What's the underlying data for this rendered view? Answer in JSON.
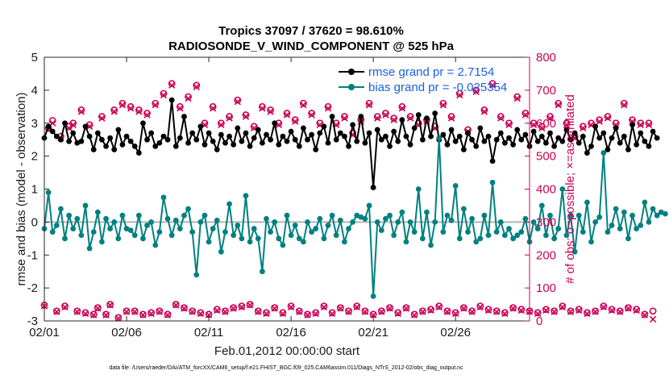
{
  "chart_data": {
    "type": "line",
    "title": "Tropics 37097 / 37620 = 98.610%",
    "subtitle": "RADIOSONDE_V_WIND_COMPONENT @ 525 hPa",
    "xlabel": "Feb.01,2012 00:00:00 start",
    "ylabel_left": "rmse and bias (model - observation)",
    "ylabel_right": "# of obs: o=possible; ×=assimilated",
    "xlim": [
      0,
      29.5
    ],
    "ylim_left": [
      -3,
      5
    ],
    "ylim_right": [
      0,
      800
    ],
    "x_ticks": [
      {
        "value": 0,
        "label": "02/01"
      },
      {
        "value": 5,
        "label": "02/06"
      },
      {
        "value": 10,
        "label": "02/11"
      },
      {
        "value": 15,
        "label": "02/16"
      },
      {
        "value": 20,
        "label": "02/21"
      },
      {
        "value": 25,
        "label": "02/26"
      }
    ],
    "y_ticks_left": [
      "-3",
      "-2",
      "-1",
      "0",
      "1",
      "2",
      "3",
      "4",
      "5"
    ],
    "y_ticks_right": [
      "0",
      "100",
      "200",
      "300",
      "400",
      "500",
      "600",
      "700",
      "800"
    ],
    "zero_line": 0,
    "step": 0.25,
    "series": [
      {
        "name": "rmse",
        "legend": "rmse grand pr = 2.7154",
        "axis": "left",
        "color": "#000000",
        "values": [
          2.55,
          2.9,
          2.75,
          2.6,
          2.5,
          3.0,
          2.45,
          2.7,
          2.4,
          2.45,
          2.9,
          2.6,
          2.2,
          2.7,
          2.5,
          2.3,
          2.55,
          2.2,
          2.8,
          2.35,
          2.6,
          2.45,
          2.3,
          2.1,
          3.0,
          2.5,
          2.7,
          2.3,
          2.4,
          2.6,
          2.5,
          3.7,
          2.3,
          2.55,
          3.2,
          2.4,
          2.7,
          2.5,
          2.9,
          2.35,
          2.7,
          2.45,
          2.2,
          2.65,
          2.4,
          2.6,
          2.35,
          2.85,
          2.45,
          2.7,
          2.3,
          2.55,
          2.8,
          2.4,
          2.65,
          2.5,
          3.0,
          2.35,
          2.6,
          2.45,
          2.75,
          2.5,
          2.3,
          2.85,
          2.5,
          2.65,
          2.2,
          2.7,
          2.9,
          2.4,
          3.2,
          2.5,
          2.7,
          2.6,
          2.3,
          2.95,
          2.45,
          3.2,
          2.4,
          2.7,
          1.05,
          2.8,
          2.5,
          2.6,
          2.3,
          2.75,
          2.45,
          3.1,
          2.6,
          2.35,
          2.85,
          3.25,
          2.5,
          3.15,
          2.6,
          3.3,
          2.5,
          2.65,
          2.35,
          2.8,
          2.45,
          2.6,
          2.2,
          2.7,
          2.5,
          2.3,
          2.85,
          2.45,
          2.6,
          1.85,
          2.5,
          2.7,
          2.4,
          2.55,
          2.35,
          2.8,
          2.5,
          2.65,
          2.3,
          2.75,
          2.45,
          2.6,
          2.4,
          2.7,
          2.3,
          2.55,
          2.45,
          2.8,
          2.5,
          2.7,
          2.4,
          2.6,
          2.1,
          2.3,
          2.9,
          2.55,
          2.7,
          2.2,
          2.55,
          2.85,
          2.4,
          2.6,
          2.2,
          2.95,
          2.35,
          2.7,
          2.45,
          2.3,
          2.75,
          2.55
        ]
      },
      {
        "name": "bias",
        "legend": "bias grand pr = -0.025354",
        "axis": "left",
        "color": "#008080",
        "values": [
          -0.2,
          0.9,
          -0.3,
          -0.1,
          0.4,
          -0.5,
          0.2,
          -0.2,
          0.1,
          -0.4,
          0.5,
          -0.8,
          -0.3,
          0.3,
          -0.6,
          0.1,
          -0.2,
          0.0,
          -0.5,
          0.2,
          -0.2,
          -0.25,
          -0.4,
          0.2,
          -0.5,
          -0.1,
          0.0,
          -0.7,
          -0.3,
          0.75,
          0.1,
          -0.4,
          0.05,
          -0.2,
          0.2,
          0.4,
          -0.3,
          -1.6,
          0.0,
          0.2,
          -0.6,
          -0.2,
          0.05,
          -0.9,
          -0.3,
          0.55,
          -0.4,
          -0.1,
          -0.5,
          0.8,
          -0.6,
          -0.2,
          -0.5,
          -1.5,
          0.1,
          -0.3,
          0.0,
          -0.5,
          -0.7,
          0.2,
          -0.4,
          -0.1,
          -0.5,
          -0.6,
          0.0,
          -0.3,
          -0.2,
          0.1,
          -0.5,
          -0.1,
          0.2,
          -0.4,
          0.05,
          -0.6,
          -0.2,
          0.0,
          0.2,
          0.15,
          0.1,
          0.5,
          -2.25,
          0.0,
          -0.25,
          0.1,
          0.2,
          -0.4,
          0.0,
          0.3,
          -0.6,
          0.0,
          -0.3,
          1.0,
          -0.5,
          0.3,
          -0.7,
          0.0,
          2.55,
          -0.3,
          0.2,
          0.05,
          1.1,
          -0.5,
          0.4,
          -0.3,
          0.1,
          -0.6,
          -0.5,
          0.2,
          -0.4,
          1.2,
          -0.3,
          0.0,
          -0.4,
          -0.2,
          -0.5,
          -0.4,
          -0.3,
          0.1,
          -0.6,
          0.0,
          -0.2,
          0.5,
          -0.4,
          0.2,
          -0.5,
          -0.2,
          1.0,
          -0.4,
          0.2,
          -0.9,
          0.2,
          -0.3,
          0.6,
          -0.6,
          0.0,
          0.15,
          2.1,
          -0.3,
          -0.1,
          0.4,
          -0.2,
          0.3,
          -0.5,
          0.2,
          -0.2,
          -0.1,
          0.6,
          0.0,
          0.4,
          0.2,
          0.3,
          0.25
        ]
      },
      {
        "name": "obs_possible",
        "axis": "right",
        "marker": "o",
        "color": "#cc0055",
        "values": [
          48,
          585,
          608,
          30,
          560,
          45,
          590,
          600,
          30,
          640,
          25,
          595,
          20,
          40,
          620,
          20,
          50,
          640,
          10,
          660,
          30,
          650,
          30,
          640,
          20,
          630,
          25,
          660,
          30,
          690,
          20,
          720,
          50,
          650,
          40,
          680,
          30,
          715,
          25,
          600,
          20,
          650,
          35,
          600,
          30,
          620,
          40,
          670,
          45,
          625,
          50,
          590,
          30,
          650,
          25,
          640,
          40,
          600,
          25,
          630,
          45,
          610,
          30,
          660,
          20,
          630,
          25,
          600,
          45,
          650,
          25,
          600,
          40,
          620,
          30,
          570,
          45,
          610,
          30,
          660,
          20,
          620,
          30,
          630,
          40,
          615,
          25,
          650,
          40,
          620,
          20,
          600,
          30,
          610,
          35,
          590,
          45,
          660,
          30,
          620,
          25,
          690,
          40,
          580,
          30,
          700,
          45,
          640,
          35,
          720,
          30,
          620,
          25,
          600,
          40,
          680,
          35,
          630,
          30,
          600,
          25,
          590,
          35,
          620,
          30,
          660,
          45,
          600,
          30,
          560,
          35,
          590,
          25,
          600,
          30,
          610,
          45,
          620,
          35,
          600,
          30,
          660,
          40,
          610,
          35,
          600,
          20,
          600,
          30
        ]
      },
      {
        "name": "obs_assimilated",
        "axis": "right",
        "marker": "x",
        "color": "#cc0055",
        "values": [
          45,
          580,
          600,
          28,
          555,
          42,
          585,
          595,
          28,
          635,
          22,
          590,
          18,
          38,
          615,
          18,
          48,
          635,
          8,
          655,
          28,
          645,
          28,
          635,
          18,
          625,
          22,
          655,
          28,
          685,
          18,
          715,
          48,
          645,
          38,
          675,
          28,
          710,
          22,
          595,
          18,
          645,
          32,
          595,
          28,
          615,
          38,
          665,
          42,
          620,
          48,
          585,
          28,
          645,
          22,
          635,
          38,
          595,
          22,
          625,
          42,
          605,
          28,
          655,
          18,
          625,
          22,
          595,
          42,
          645,
          22,
          595,
          38,
          615,
          28,
          565,
          42,
          605,
          28,
          655,
          18,
          615,
          28,
          625,
          38,
          610,
          22,
          645,
          38,
          615,
          18,
          595,
          28,
          605,
          32,
          585,
          42,
          655,
          28,
          615,
          22,
          685,
          38,
          575,
          28,
          695,
          42,
          635,
          32,
          715,
          28,
          615,
          22,
          595,
          38,
          675,
          32,
          625,
          28,
          595,
          22,
          585,
          32,
          615,
          28,
          655,
          42,
          595,
          28,
          555,
          32,
          585,
          22,
          595,
          28,
          605,
          42,
          615,
          32,
          595,
          28,
          655,
          38,
          605,
          32,
          595,
          18,
          595,
          5
        ]
      }
    ],
    "legend_position": "top-right"
  },
  "footer": {
    "text": "data file: /Users/raeder/DAI/ATM_forcXX/CAM6_setup/f.e21.FHIST_BGC.f09_025.CAM6assim.011/Diags_NTrS_2012-02/obs_diag_output.nc"
  }
}
